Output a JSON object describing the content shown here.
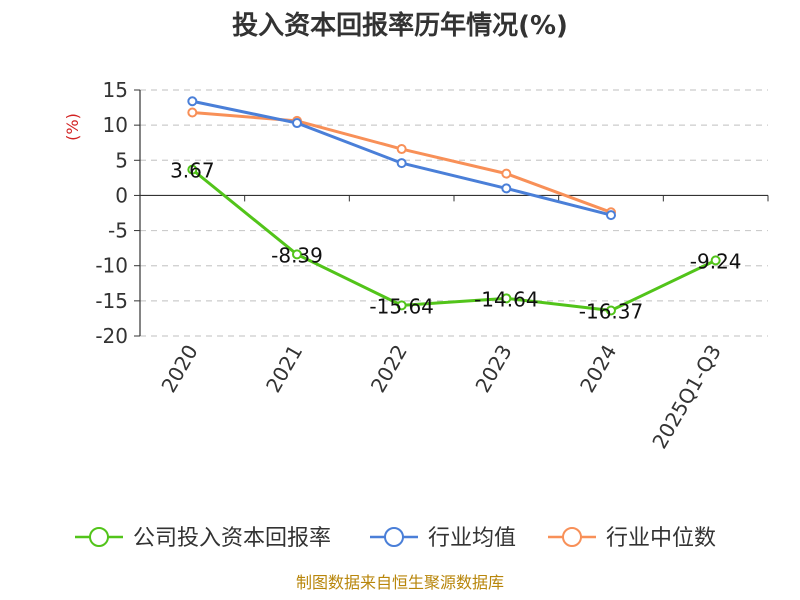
{
  "chart_data": {
    "type": "line",
    "title": "投入资本回报率历年情况(%)",
    "ylabel": "(%)",
    "categories": [
      "2020",
      "2021",
      "2022",
      "2023",
      "2024",
      "2025Q1-Q3"
    ],
    "ylim": [
      -20,
      15
    ],
    "yticks": [
      15,
      10,
      5,
      0,
      -5,
      -10,
      -15,
      -20
    ],
    "grid": true,
    "legend_position": "bottom",
    "series": [
      {
        "name": "公司投入资本回报率",
        "color": "#52c41a",
        "values": [
          3.67,
          -8.39,
          -15.64,
          -14.64,
          -16.37,
          -9.24
        ],
        "labels": [
          "3.67",
          "-8.39",
          "-15.64",
          "-14.64",
          "-16.37",
          "-9.24"
        ]
      },
      {
        "name": "行业均值",
        "color": "#4a7fd8",
        "values": [
          13.4,
          10.3,
          4.6,
          1.0,
          -2.8,
          null
        ]
      },
      {
        "name": "行业中位数",
        "color": "#f89058",
        "values": [
          11.8,
          10.6,
          6.6,
          3.1,
          -2.4,
          null
        ]
      }
    ]
  },
  "source": "制图数据来自恒生聚源数据库"
}
